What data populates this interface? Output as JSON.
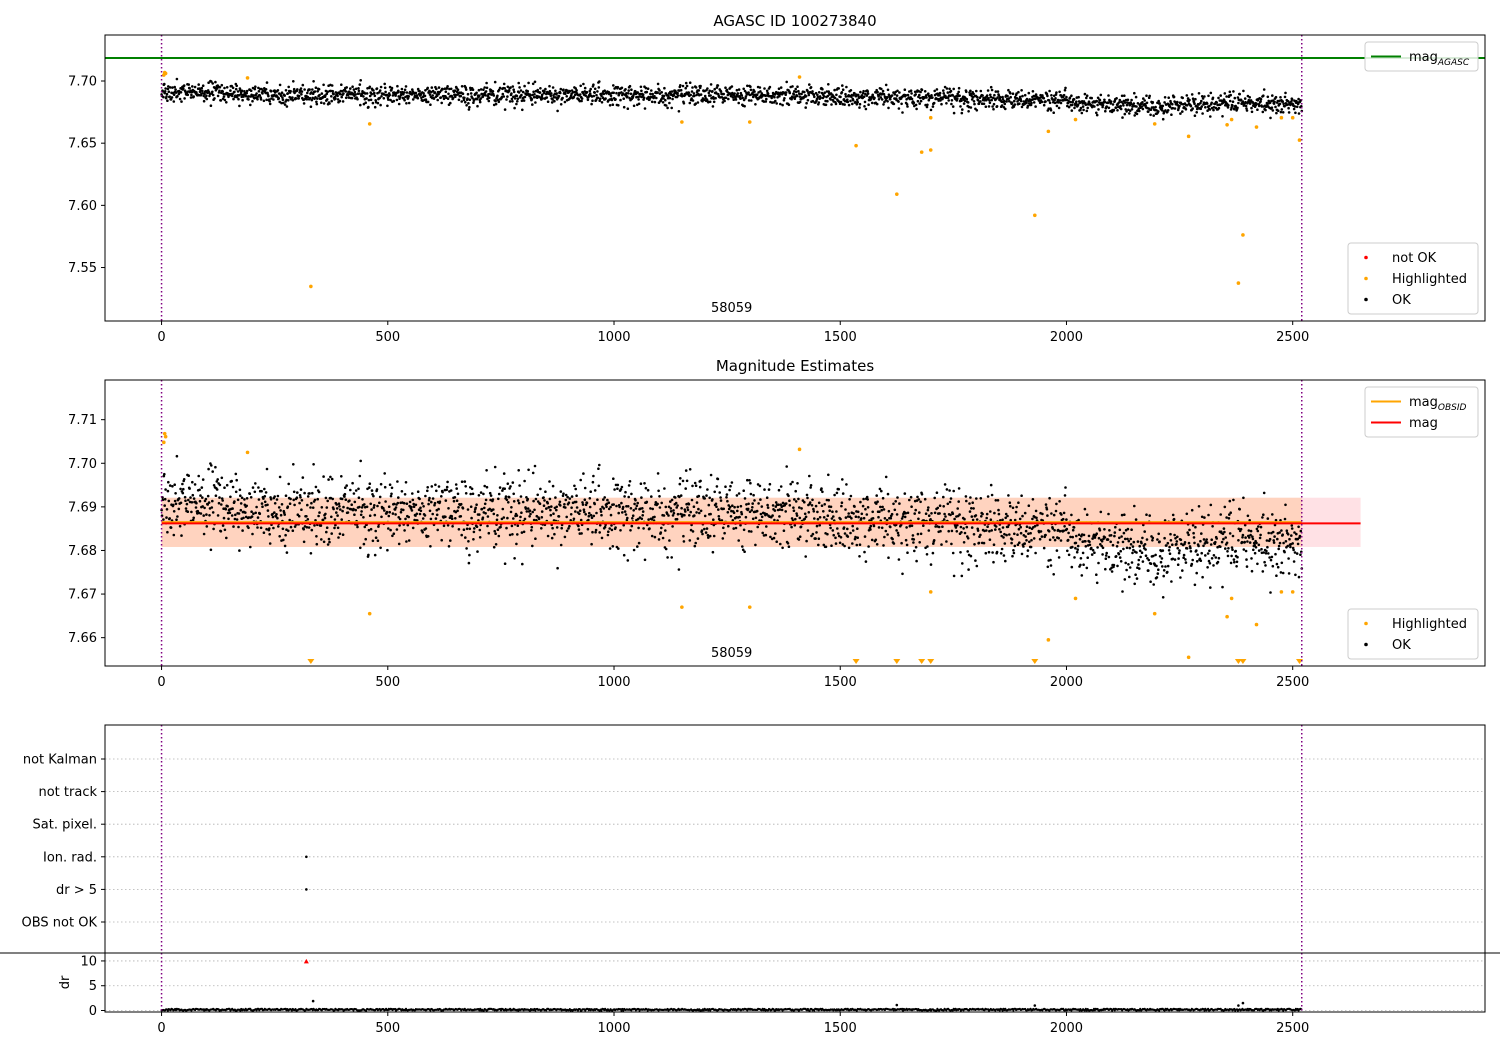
{
  "chart_data": [
    {
      "type": "scatter",
      "title": "AGASC ID 100273840",
      "annotation": "58059",
      "xlim": [
        -125,
        2925
      ],
      "ylim": [
        7.507,
        7.737
      ],
      "x_ticks": [
        0,
        500,
        1000,
        1500,
        2000,
        2500
      ],
      "y_ticks": [
        7.55,
        7.6,
        7.65,
        7.7
      ],
      "y_tick_labels": [
        "7.55",
        "7.60",
        "7.65",
        "7.70"
      ],
      "vlines": [
        0,
        2520
      ],
      "vline_color": "#800080",
      "hlines": [
        {
          "name": "mag_AGASC",
          "y": 7.7185,
          "color": "#008000"
        }
      ],
      "legend_lines": [
        {
          "label": "mag",
          "sub": "AGASC",
          "color": "#008000"
        }
      ],
      "legend_lines_position": "top-right",
      "legend_points": [
        {
          "label": "not OK",
          "color": "#ff0000"
        },
        {
          "label": "Highlighted",
          "color": "#ffa500"
        },
        {
          "label": "OK",
          "color": "#000000"
        }
      ],
      "legend_points_position": "bottom-right",
      "ok_trend": {
        "color": "#000000",
        "x_range": [
          0,
          2520
        ],
        "anchors": [
          [
            0,
            7.6915
          ],
          [
            300,
            7.6885
          ],
          [
            600,
            7.6888
          ],
          [
            900,
            7.6892
          ],
          [
            1300,
            7.6885
          ],
          [
            1700,
            7.686
          ],
          [
            2000,
            7.684
          ],
          [
            2200,
            7.679
          ],
          [
            2300,
            7.682
          ],
          [
            2520,
            7.682
          ]
        ],
        "spread": 0.0047
      },
      "highlighted": [
        [
          5,
          7.7048
        ],
        [
          7,
          7.7068
        ],
        [
          9,
          7.7061
        ],
        [
          190,
          7.7025
        ],
        [
          330,
          7.5348
        ],
        [
          460,
          7.6655
        ],
        [
          1150,
          7.667
        ],
        [
          1300,
          7.667
        ],
        [
          1410,
          7.7032
        ],
        [
          1535,
          7.648
        ],
        [
          1625,
          7.609
        ],
        [
          1680,
          7.6428
        ],
        [
          1700,
          7.6705
        ],
        [
          1700,
          7.6445
        ],
        [
          1930,
          7.592
        ],
        [
          1960,
          7.6595
        ],
        [
          2020,
          7.669
        ],
        [
          2195,
          7.6655
        ],
        [
          2270,
          7.6555
        ],
        [
          2355,
          7.6648
        ],
        [
          2365,
          7.669
        ],
        [
          2380,
          7.5375
        ],
        [
          2390,
          7.5762
        ],
        [
          2420,
          7.663
        ],
        [
          2475,
          7.6705
        ],
        [
          2500,
          7.6705
        ],
        [
          2515,
          7.6525
        ]
      ]
    },
    {
      "type": "scatter",
      "title": "Magnitude Estimates",
      "annotation": "58059",
      "xlim": [
        -125,
        2925
      ],
      "ylim": [
        7.6535,
        7.7191
      ],
      "x_ticks": [
        0,
        500,
        1000,
        1500,
        2000,
        2500
      ],
      "y_ticks": [
        7.66,
        7.67,
        7.68,
        7.69,
        7.7,
        7.71
      ],
      "y_tick_labels": [
        "7.66",
        "7.67",
        "7.68",
        "7.69",
        "7.70",
        "7.71"
      ],
      "vlines": [
        0,
        2520
      ],
      "vline_color": "#800080",
      "band_mag": {
        "x": [
          0,
          2650
        ],
        "y": [
          7.6808,
          7.6921
        ],
        "color": "#ff9aa8"
      },
      "band_obsid": {
        "x": [
          0,
          2520
        ],
        "y": [
          7.6808,
          7.6921
        ],
        "color": "#ffbe88"
      },
      "lines": [
        {
          "name": "mag_OBSID",
          "y": 7.6865,
          "x": [
            0,
            2520
          ],
          "color": "#ffa500"
        },
        {
          "name": "mag",
          "y": 7.6862,
          "x": [
            0,
            2650
          ],
          "color": "#ff0000"
        }
      ],
      "legend_lines": [
        {
          "label": "mag",
          "sub": "OBSID",
          "color": "#ffa500"
        },
        {
          "label": "mag",
          "sub": "",
          "color": "#ff0000"
        }
      ],
      "legend_lines_position": "top-right",
      "legend_points": [
        {
          "label": "Highlighted",
          "color": "#ffa500"
        },
        {
          "label": "OK",
          "color": "#000000"
        }
      ],
      "legend_points_position": "bottom-right",
      "ok_trend": {
        "color": "#000000",
        "x_range": [
          0,
          2520
        ],
        "anchors": [
          [
            0,
            7.6915
          ],
          [
            300,
            7.6885
          ],
          [
            600,
            7.6888
          ],
          [
            900,
            7.6892
          ],
          [
            1300,
            7.6885
          ],
          [
            1700,
            7.686
          ],
          [
            2000,
            7.684
          ],
          [
            2200,
            7.679
          ],
          [
            2300,
            7.682
          ],
          [
            2520,
            7.682
          ]
        ],
        "spread": 0.0047
      },
      "highlighted": [
        [
          5,
          7.7048
        ],
        [
          7,
          7.7068
        ],
        [
          9,
          7.7061
        ],
        [
          190,
          7.7025
        ],
        [
          460,
          7.6655
        ],
        [
          1150,
          7.667
        ],
        [
          1300,
          7.667
        ],
        [
          1410,
          7.7032
        ],
        [
          1700,
          7.6705
        ],
        [
          1960,
          7.6595
        ],
        [
          2020,
          7.669
        ],
        [
          2195,
          7.6655
        ],
        [
          2270,
          7.6555
        ],
        [
          2355,
          7.6648
        ],
        [
          2365,
          7.669
        ],
        [
          2420,
          7.663
        ],
        [
          2475,
          7.6705
        ],
        [
          2500,
          7.6705
        ]
      ],
      "off_scale_low": [
        330,
        1535,
        1625,
        1680,
        1700,
        1930,
        2380,
        2390,
        2515
      ]
    },
    {
      "type": "scatter",
      "flags": [
        "not Kalman",
        "not track",
        "Sat. pixel.",
        "Ion. rad.",
        "dr > 5",
        "OBS not OK"
      ],
      "flag_points": [
        {
          "flag": "Ion. rad.",
          "x": 320
        },
        {
          "flag": "dr > 5",
          "x": 320
        }
      ],
      "xlim": [
        -125,
        2925
      ],
      "x_ticks": [
        0,
        500,
        1000,
        1500,
        2000,
        2500
      ],
      "vlines": [
        0,
        2520
      ],
      "vline_color": "#800080",
      "grid": "horizontal dotted"
    },
    {
      "type": "scatter",
      "ylabel": "dr",
      "xlim": [
        -125,
        2925
      ],
      "ylim": [
        -0.3,
        11.6
      ],
      "x_ticks": [
        0,
        500,
        1000,
        1500,
        2000,
        2500
      ],
      "y_ticks": [
        0,
        5,
        10
      ],
      "y_tick_labels": [
        "0",
        "5",
        "10"
      ],
      "vlines": [
        0,
        2520
      ],
      "vline_color": "#800080",
      "ok_baseline": {
        "x_range": [
          0,
          2520
        ],
        "y_max": 0.35,
        "color": "#000000"
      },
      "outliers": [
        {
          "x": 320,
          "y": 9.9,
          "color": "#ff0000"
        },
        {
          "x": 335,
          "y": 1.9,
          "color": "#000000"
        },
        {
          "x": 1625,
          "y": 1.1,
          "color": "#000000"
        },
        {
          "x": 1930,
          "y": 1.0,
          "color": "#000000"
        },
        {
          "x": 2380,
          "y": 1.0,
          "color": "#000000"
        },
        {
          "x": 2390,
          "y": 1.5,
          "color": "#000000"
        }
      ]
    }
  ]
}
